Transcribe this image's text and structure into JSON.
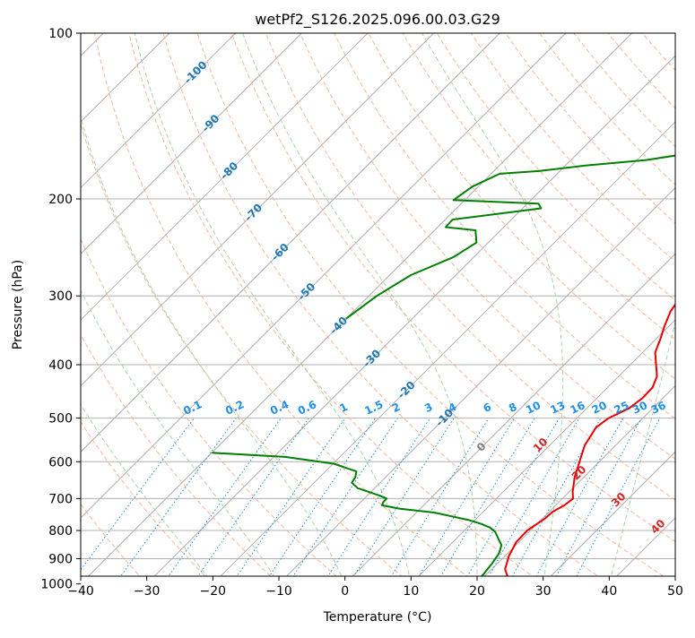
{
  "chart_data": {
    "type": "skew-t",
    "title": "wetPf2_S126.2025.096.00.03.G29",
    "xlabel": "Temperature (°C)",
    "ylabel": "Pressure (hPa)",
    "xlim": [
      -40,
      50
    ],
    "ylim": [
      1050,
      100
    ],
    "y_scale": "log",
    "grid": true,
    "x_ticks": [
      "−40",
      "−30",
      "−20",
      "−10",
      "0",
      "10",
      "20",
      "30",
      "40",
      "50"
    ],
    "x_tick_values": [
      -40,
      -30,
      -20,
      -10,
      0,
      10,
      20,
      30,
      40,
      50
    ],
    "y_ticks": [
      "100",
      "200",
      "300",
      "400",
      "500",
      "600",
      "700",
      "800",
      "900",
      "1000"
    ],
    "y_tick_values": [
      100,
      200,
      300,
      400,
      500,
      600,
      700,
      800,
      900,
      1000
    ],
    "colors": {
      "temperature": "#e60000",
      "dewpoint": "#008000",
      "isotherm": "#b0b0b0",
      "dry_adiabat": "#f4a582",
      "moist_adiabat": "#9fd29f",
      "mixing_ratio": "#1f8fe8",
      "isotherm_label": "#1f77b4",
      "mixing_label": "#1f8fe8",
      "moist_label": "#d62728",
      "freezing_label": "#808080"
    },
    "series": [
      {
        "id": "temperature",
        "points": [
          [
            26.3,
            1013
          ],
          [
            24,
            980
          ],
          [
            22,
            940
          ],
          [
            20.6,
            890
          ],
          [
            19.6,
            840
          ],
          [
            19.5,
            800
          ],
          [
            20.4,
            760
          ],
          [
            20.5,
            740
          ],
          [
            21.3,
            720
          ],
          [
            21.6,
            700
          ],
          [
            20.5,
            680
          ],
          [
            18.6,
            640
          ],
          [
            17,
            600
          ],
          [
            15.3,
            560
          ],
          [
            14.3,
            520
          ],
          [
            14.8,
            500
          ],
          [
            16.4,
            480
          ],
          [
            16.9,
            460
          ],
          [
            16.8,
            440
          ],
          [
            15.8,
            420
          ],
          [
            13.9,
            400
          ],
          [
            11.9,
            380
          ],
          [
            10.7,
            360
          ],
          [
            9.3,
            340
          ],
          [
            8,
            320
          ],
          [
            7.3,
            300
          ],
          [
            6.8,
            280
          ],
          [
            7.2,
            260
          ],
          [
            9.8,
            240
          ],
          [
            10.5,
            220
          ],
          [
            10.5,
            200
          ],
          [
            10.4,
            180
          ],
          [
            9.5,
            160
          ],
          [
            8.4,
            150
          ],
          [
            7.4,
            140
          ],
          [
            6.4,
            130
          ],
          [
            5.7,
            120
          ],
          [
            5.3,
            110
          ],
          [
            4.9,
            100
          ]
        ]
      },
      {
        "id": "dewpoint",
        "points": [
          [
            19.7,
            1000
          ],
          [
            19.5,
            960
          ],
          [
            19.2,
            920
          ],
          [
            18.7,
            880
          ],
          [
            17.8,
            850
          ],
          [
            16.5,
            830
          ],
          [
            14.9,
            805
          ],
          [
            13.4,
            790
          ],
          [
            11.5,
            778
          ],
          [
            8.9,
            765
          ],
          [
            2.7,
            742
          ],
          [
            -3.2,
            730
          ],
          [
            -6.3,
            720
          ],
          [
            -6.6,
            710
          ],
          [
            -6.6,
            700
          ],
          [
            -8.4,
            690
          ],
          [
            -12.6,
            670
          ],
          [
            -14.3,
            655
          ],
          [
            -14.6,
            640
          ],
          [
            -15.3,
            625
          ],
          [
            -19.9,
            605
          ],
          [
            -28.3,
            588
          ],
          [
            -40,
            578
          ]
        ]
      },
      {
        "id": "dewpoint-upper",
        "points": [
          [
            -40,
            330
          ],
          [
            -38.8,
            300
          ],
          [
            -36.8,
            275
          ],
          [
            -33.1,
            255
          ],
          [
            -31.8,
            240
          ],
          [
            -33.8,
            228
          ],
          [
            -38.8,
            225
          ],
          [
            -38.9,
            218
          ],
          [
            -27.2,
            208
          ],
          [
            -28.3,
            204
          ],
          [
            -41.7,
            201
          ],
          [
            -40.9,
            190
          ],
          [
            -38.7,
            180
          ],
          [
            -33.2,
            178
          ],
          [
            -27,
            174
          ],
          [
            -18.6,
            170
          ],
          [
            -12.8,
            165
          ],
          [
            -8.8,
            160
          ],
          [
            -2.7,
            150
          ],
          [
            -3.3,
            140
          ],
          [
            -4.7,
            135
          ],
          [
            -4.3,
            130
          ],
          [
            -2.5,
            120
          ],
          [
            -0.5,
            112
          ],
          [
            2.4,
            104
          ],
          [
            2.9,
            100
          ]
        ]
      }
    ],
    "isotherms_c": [
      -100,
      -90,
      -80,
      -70,
      -60,
      -50,
      -40,
      -30,
      -20,
      -10,
      0,
      10,
      20,
      30,
      40,
      50
    ],
    "isotherm_labels": [
      {
        "text": "-100",
        "t": -100
      },
      {
        "text": "-90",
        "t": -90
      },
      {
        "text": "-80",
        "t": -80
      },
      {
        "text": "-70",
        "t": -70
      },
      {
        "text": "-60",
        "t": -60
      },
      {
        "text": "-50",
        "t": -50
      },
      {
        "text": "-40",
        "t": -40
      },
      {
        "text": "-30",
        "t": -30
      },
      {
        "text": "-20",
        "t": -20
      },
      {
        "text": "-10",
        "t": -10
      },
      {
        "text": "0",
        "t": 0
      }
    ],
    "dry_adiabats_c": [
      -30,
      -20,
      -10,
      0,
      10,
      20,
      30,
      40,
      50,
      60,
      70,
      80,
      90,
      100,
      110,
      120,
      130,
      140,
      150,
      160,
      170,
      180
    ],
    "moist_adiabats_c": [
      -20,
      -10,
      0,
      10,
      20,
      30,
      40
    ],
    "moist_labels": [
      {
        "text": "10",
        "t": 10
      },
      {
        "text": "20",
        "t": 20
      },
      {
        "text": "30",
        "t": 30
      },
      {
        "text": "40",
        "t": 40
      }
    ],
    "mixing_ratios_gkg": [
      0.1,
      0.2,
      0.4,
      0.6,
      1,
      1.5,
      2,
      3,
      4,
      6,
      8,
      10,
      13,
      16,
      20,
      25,
      30,
      36
    ],
    "mixing_labels": [
      "0.1",
      "0.2",
      "0.4",
      "0.6",
      "1",
      "1.5",
      "2",
      "3",
      "4",
      "6",
      "8",
      "10",
      "13",
      "16",
      "20",
      "25",
      "30",
      "36"
    ]
  }
}
